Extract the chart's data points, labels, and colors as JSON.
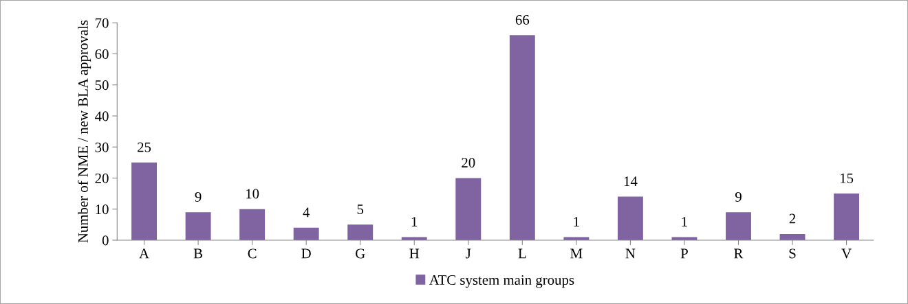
{
  "chart_data": {
    "type": "bar",
    "ylabel": "Number of NME / new BLA approvals",
    "categories": [
      "A",
      "B",
      "C",
      "D",
      "G",
      "H",
      "J",
      "L",
      "M",
      "N",
      "P",
      "R",
      "S",
      "V"
    ],
    "series": [
      {
        "name": "ATC system main groups",
        "color": "#8064a2",
        "values": [
          25,
          9,
          10,
          4,
          5,
          1,
          20,
          66,
          1,
          14,
          1,
          9,
          2,
          15
        ]
      }
    ],
    "ylim": [
      0,
      70
    ],
    "yticks": [
      0,
      10,
      20,
      30,
      40,
      50,
      60,
      70
    ],
    "data_labels": true,
    "legend": "bottom",
    "grid": false
  }
}
